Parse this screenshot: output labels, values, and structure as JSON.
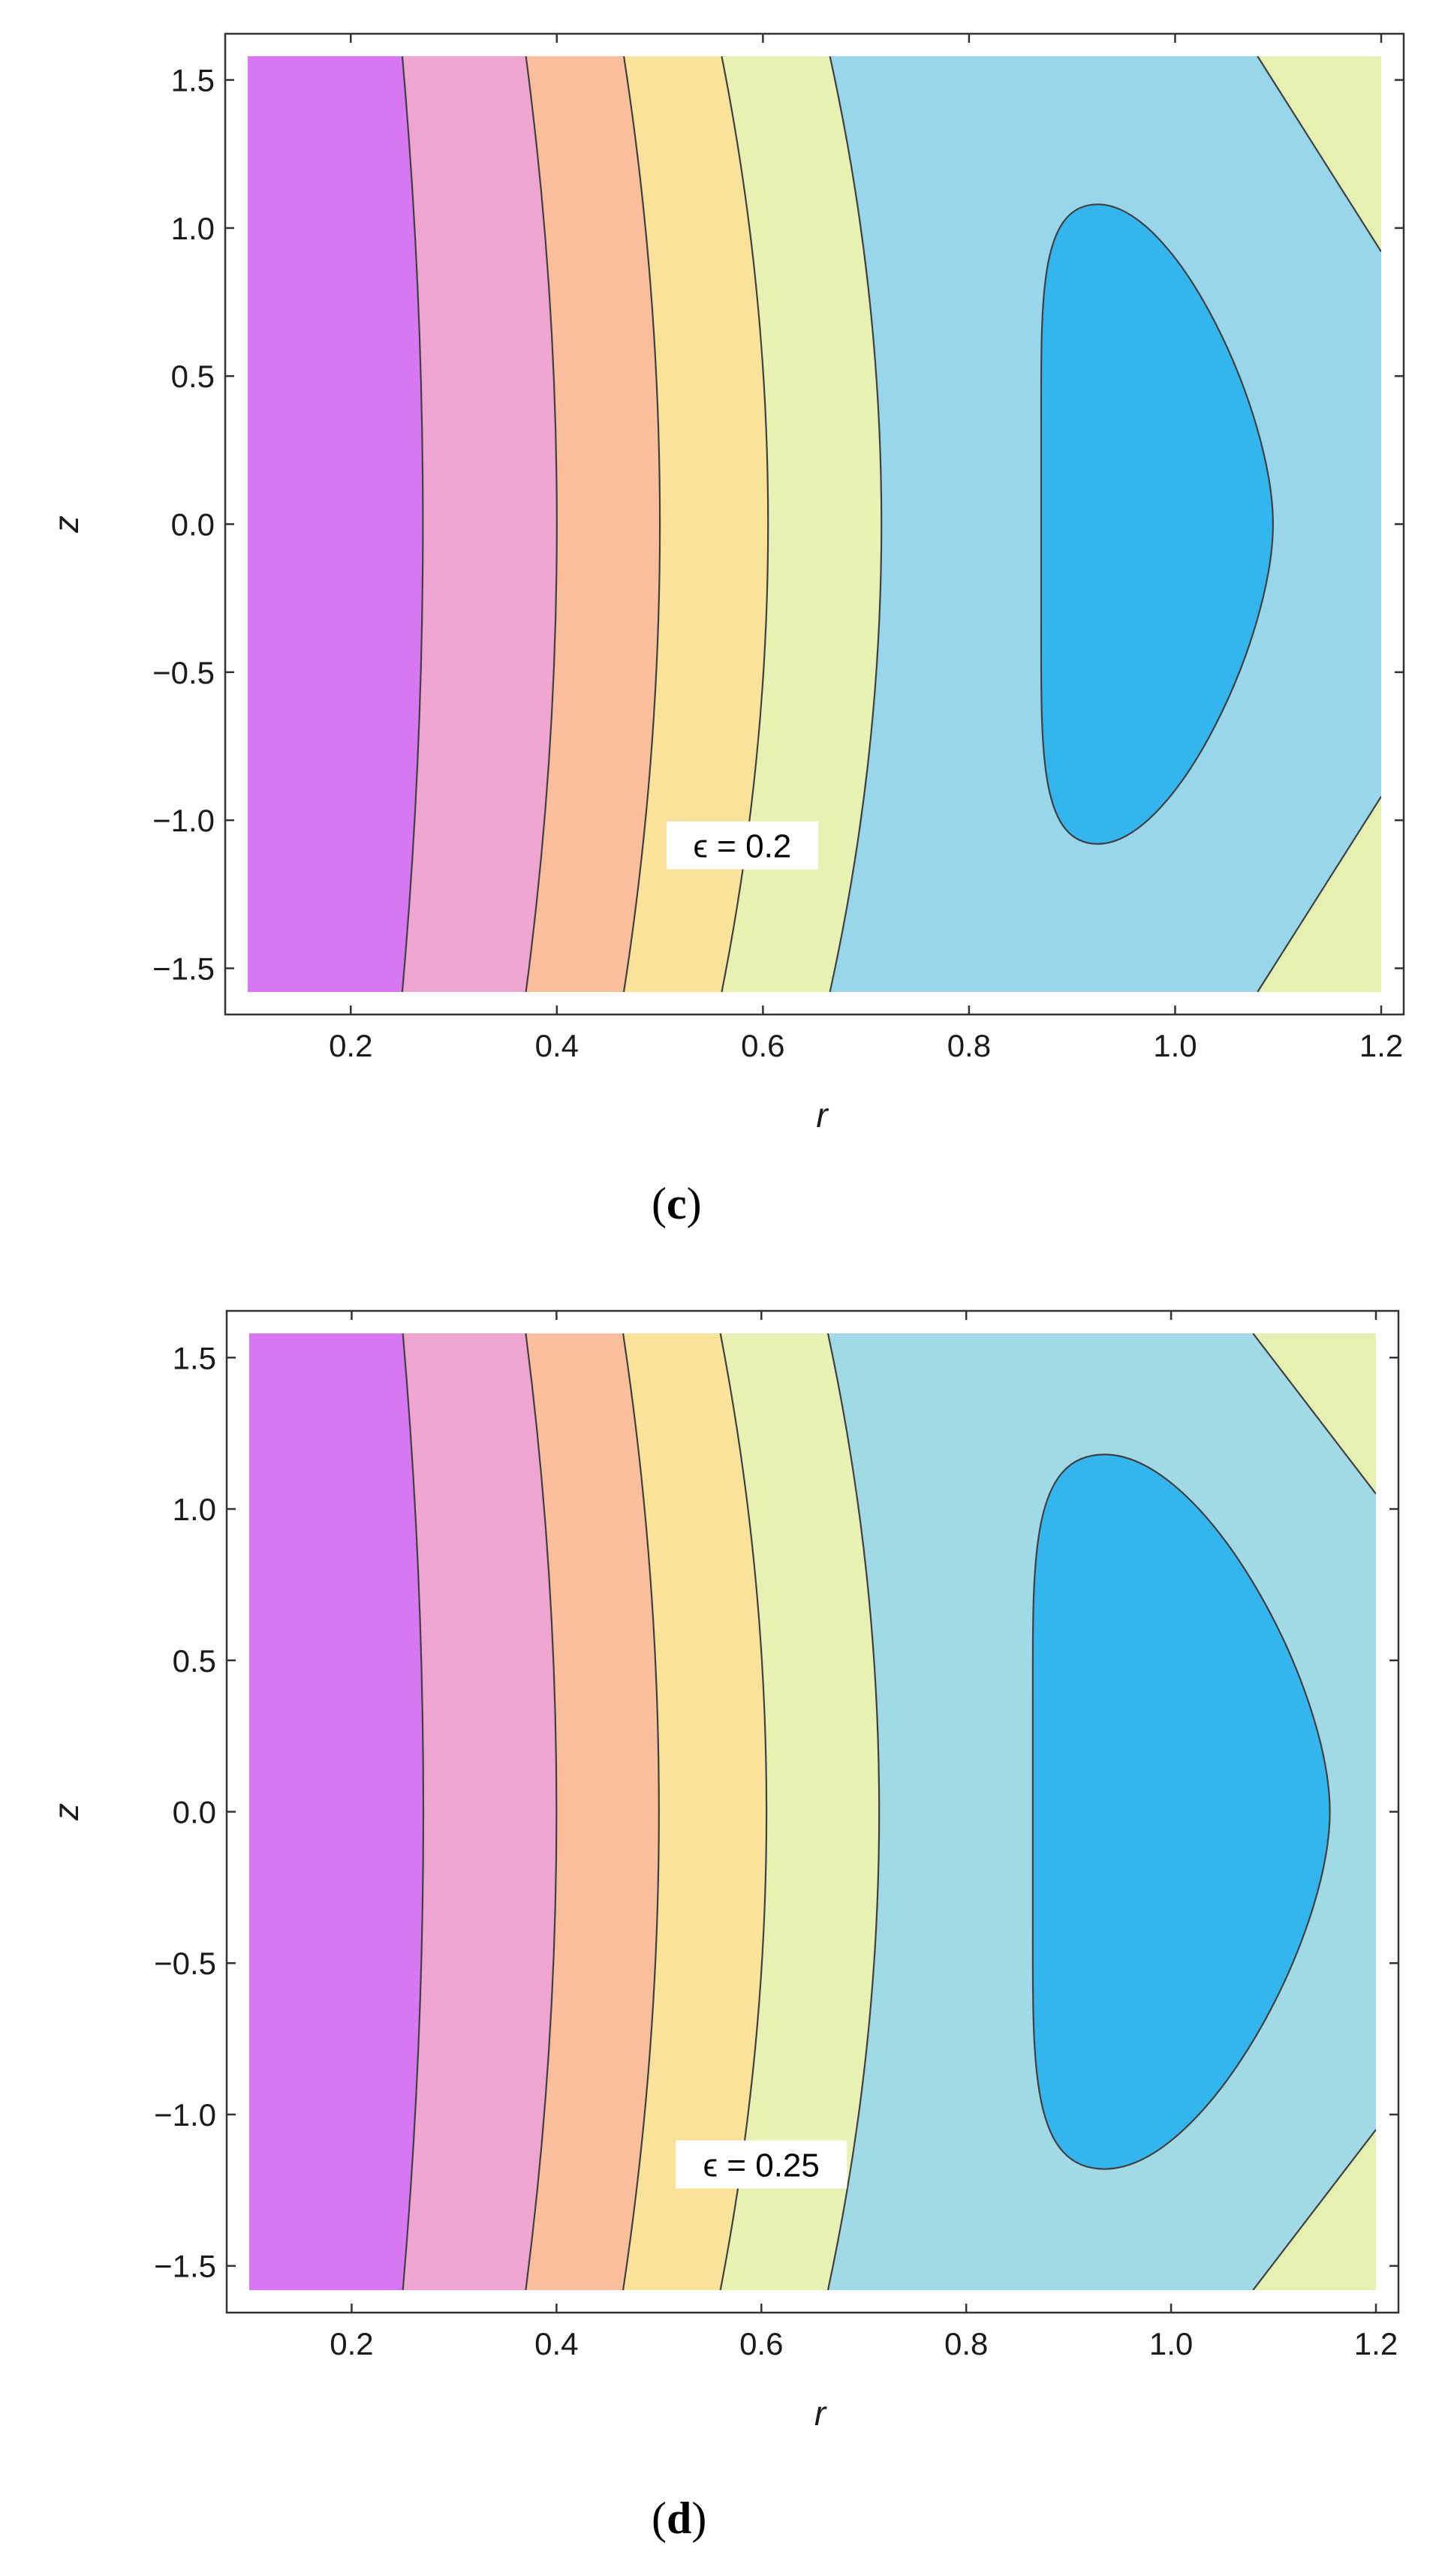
{
  "colors": {
    "band1": "#d877f4",
    "band2": "#eea5d0",
    "band3": "#fbbf9d",
    "band4": "#f9e39a",
    "band5": "#e8f1b3",
    "band6c": "#97d6eb",
    "band6d": "#a1d9e7",
    "band7": "#35b5ee",
    "tip": "#e4f0b1",
    "contour": "#404040"
  },
  "chart_data": [
    {
      "type": "contour",
      "panel_label": "c",
      "xlabel": "r",
      "ylabel": "z",
      "xlim": [
        0.1,
        1.2
      ],
      "ylim": [
        -1.58,
        1.58
      ],
      "xticks": [
        "0.2",
        "0.4",
        "0.6",
        "0.8",
        "1.0",
        "1.2"
      ],
      "yticks": [
        "1.5",
        "1.0",
        "0.5",
        "0.0",
        "−0.5",
        "−1.0",
        "−1.5"
      ],
      "annotation": {
        "text": "ϵ = 0.2",
        "x": 0.58,
        "y": -1.09
      },
      "contour_lines": [
        {
          "edge_r": 0.25,
          "mid_r": 0.27
        },
        {
          "edge_r": 0.37,
          "mid_r": 0.4
        },
        {
          "edge_r": 0.465,
          "mid_r": 0.5
        },
        {
          "edge_r": 0.56,
          "mid_r": 0.605
        },
        {
          "edge_r": 0.665,
          "mid_r": 0.715
        }
      ],
      "closed_region": {
        "r_min": 0.87,
        "r_max": 1.095,
        "r_peak": 0.925,
        "z_extent": 1.08
      },
      "corner_line": {
        "r_at_zmax": 1.08,
        "z_at_rmax": 0.92
      }
    },
    {
      "type": "contour",
      "panel_label": "d",
      "xlabel": "r",
      "ylabel": "z",
      "xlim": [
        0.1,
        1.2
      ],
      "ylim": [
        -1.58,
        1.58
      ],
      "xticks": [
        "0.2",
        "0.4",
        "0.6",
        "0.8",
        "1.0",
        "1.2"
      ],
      "yticks": [
        "1.5",
        "1.0",
        "0.5",
        "0.0",
        "−0.5",
        "−1.0",
        "−1.5"
      ],
      "annotation": {
        "text": "ϵ = 0.25",
        "x": 0.6,
        "y": -1.17
      },
      "contour_lines": [
        {
          "edge_r": 0.25,
          "mid_r": 0.27
        },
        {
          "edge_r": 0.37,
          "mid_r": 0.4
        },
        {
          "edge_r": 0.465,
          "mid_r": 0.5
        },
        {
          "edge_r": 0.56,
          "mid_r": 0.605
        },
        {
          "edge_r": 0.665,
          "mid_r": 0.715
        }
      ],
      "closed_region": {
        "r_min": 0.865,
        "r_max": 1.155,
        "r_peak": 0.935,
        "z_extent": 1.18
      },
      "corner_line": {
        "r_at_zmax": 1.08,
        "z_at_rmax": 1.05
      }
    }
  ]
}
